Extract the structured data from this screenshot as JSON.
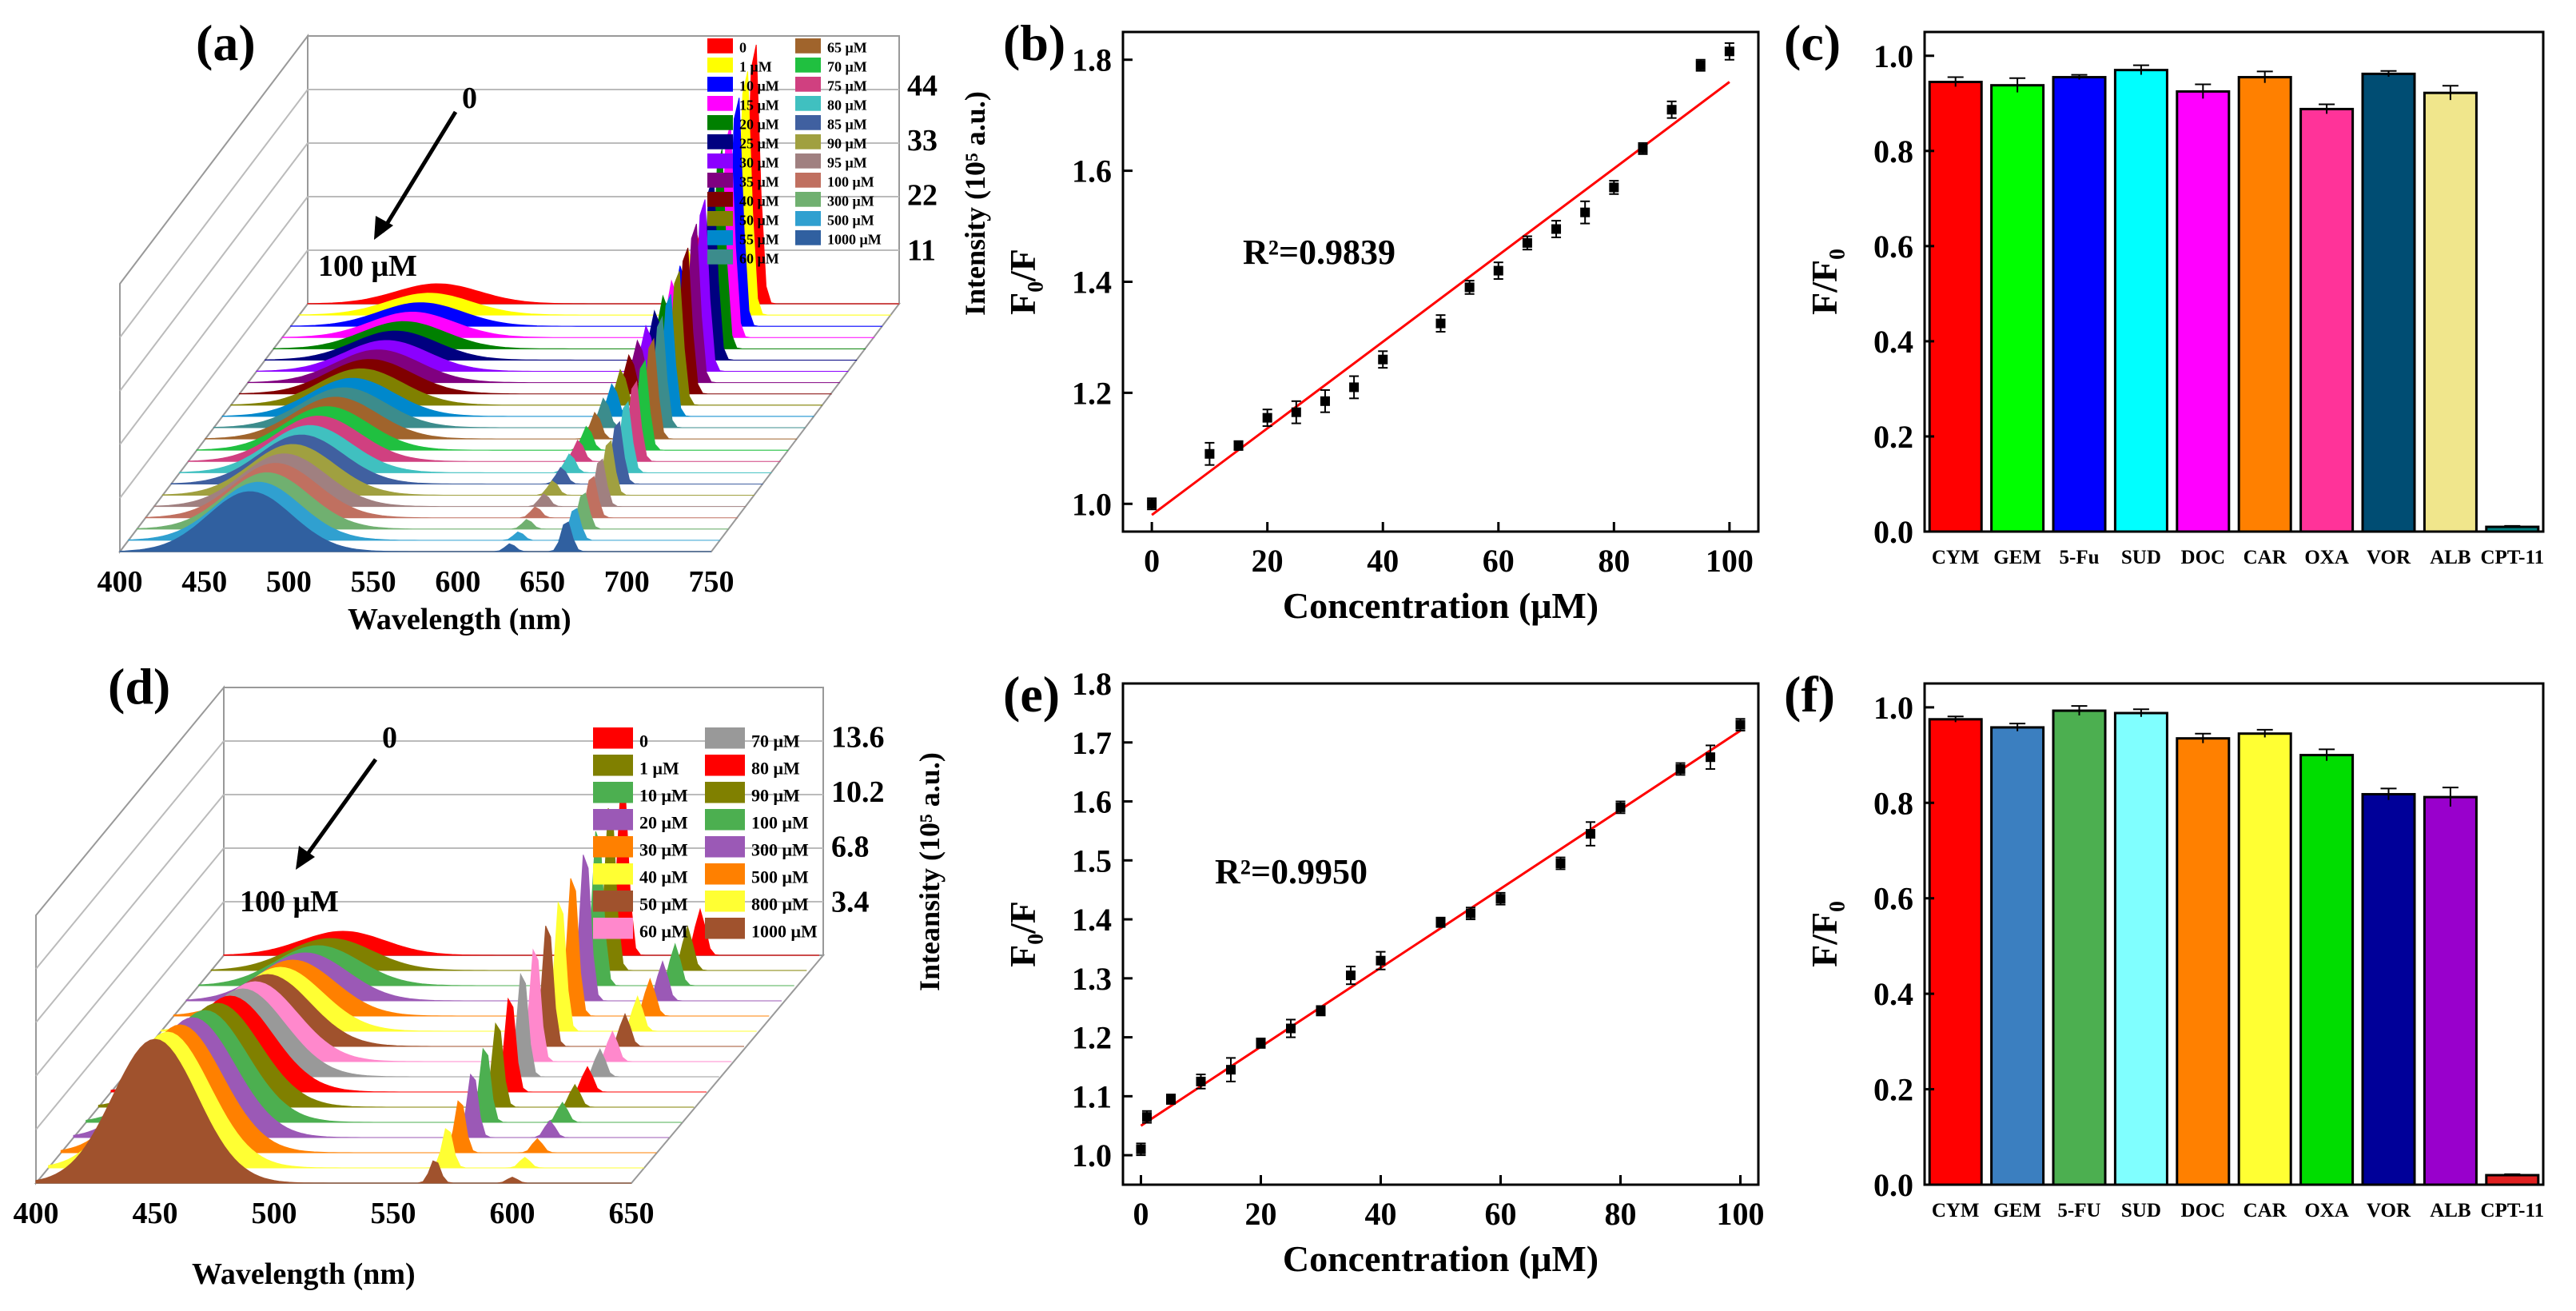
{
  "panels": {
    "a": {
      "label": "(a)",
      "arrow_start": "0",
      "arrow_end": "100 μM",
      "xlabel": "Wavelength (nm)",
      "x_ticks": [
        "400",
        "450",
        "500",
        "550",
        "600",
        "650",
        "700",
        "750"
      ],
      "z_label": "Intensity (10⁵ a.u.)",
      "z_ticks": [
        "11",
        "22",
        "33",
        "44"
      ],
      "legend": [
        {
          "label": "0",
          "color": "#ff0000"
        },
        {
          "label": "1 μM",
          "color": "#ffff00"
        },
        {
          "label": "10 μM",
          "color": "#0000ff"
        },
        {
          "label": "15 μM",
          "color": "#ff00ff"
        },
        {
          "label": "20 μM",
          "color": "#008000"
        },
        {
          "label": "25 μM",
          "color": "#000080"
        },
        {
          "label": "30 μM",
          "color": "#8b00ff"
        },
        {
          "label": "35 μM",
          "color": "#800080"
        },
        {
          "label": "40 μM",
          "color": "#800000"
        },
        {
          "label": "50 μM",
          "color": "#808000"
        },
        {
          "label": "55 μM",
          "color": "#0088cc"
        },
        {
          "label": "60 μM",
          "color": "#3c8c8c"
        },
        {
          "label": "65 μM",
          "color": "#a0642c"
        },
        {
          "label": "70 μM",
          "color": "#20c040"
        },
        {
          "label": "75 μM",
          "color": "#d04080"
        },
        {
          "label": "80 μM",
          "color": "#40c0c0"
        },
        {
          "label": "85 μM",
          "color": "#4060a0"
        },
        {
          "label": "90 μM",
          "color": "#a0a040"
        },
        {
          "label": "95 μM",
          "color": "#a08080"
        },
        {
          "label": "100 μM",
          "color": "#c07060"
        },
        {
          "label": "300 μM",
          "color": "#70b070"
        },
        {
          "label": "500 μM",
          "color": "#30a0d0"
        },
        {
          "label": "1000 μM",
          "color": "#3060a0"
        }
      ]
    },
    "b": {
      "label": "(b)",
      "annotation": "R²=0.9839"
    },
    "c": {
      "label": "(c)"
    },
    "d": {
      "label": "(d)",
      "arrow_start": "0",
      "arrow_end": "100 μM",
      "xlabel": "Wavelength (nm)",
      "x_ticks": [
        "400",
        "450",
        "500",
        "550",
        "600",
        "650"
      ],
      "z_label": "Inteansity (10⁵ a.u.)",
      "z_ticks": [
        "3.4",
        "6.8",
        "10.2",
        "13.6"
      ],
      "legend": [
        {
          "label": "0",
          "color": "#ff0000"
        },
        {
          "label": "1 μM",
          "color": "#808000"
        },
        {
          "label": "10 μM",
          "color": "#4caf50"
        },
        {
          "label": "20 μM",
          "color": "#9b59b6"
        },
        {
          "label": "30 μM",
          "color": "#ff8000"
        },
        {
          "label": "40 μM",
          "color": "#ffff33"
        },
        {
          "label": "50 μM",
          "color": "#a0522d"
        },
        {
          "label": "60 μM",
          "color": "#ff88cc"
        },
        {
          "label": "70 μM",
          "color": "#999999"
        },
        {
          "label": "80 μM",
          "color": "#ff0000"
        },
        {
          "label": "90 μM",
          "color": "#808000"
        },
        {
          "label": "100 μM",
          "color": "#4caf50"
        },
        {
          "label": "300 μM",
          "color": "#9b59b6"
        },
        {
          "label": "500 μM",
          "color": "#ff8000"
        },
        {
          "label": "800 μM",
          "color": "#ffff33"
        },
        {
          "label": "1000 μM",
          "color": "#a0522d"
        }
      ]
    },
    "e": {
      "label": "(e)",
      "annotation": "R²=0.9950"
    },
    "f": {
      "label": "(f)"
    }
  },
  "chart_data": [
    {
      "id": "b",
      "type": "scatter",
      "xlabel": "Concentration (μM)",
      "ylabel": "F₀/F",
      "xlim": [
        -5,
        105
      ],
      "ylim": [
        0.95,
        1.85
      ],
      "x_ticks": [
        0,
        20,
        40,
        60,
        80,
        100
      ],
      "y_ticks": [
        1.0,
        1.2,
        1.4,
        1.6,
        1.8
      ],
      "x": [
        0,
        10,
        15,
        20,
        25,
        30,
        35,
        40,
        50,
        55,
        60,
        65,
        70,
        75,
        80,
        85,
        90,
        95,
        100
      ],
      "y": [
        1.0,
        1.09,
        1.105,
        1.155,
        1.165,
        1.185,
        1.21,
        1.26,
        1.325,
        1.39,
        1.42,
        1.47,
        1.495,
        1.525,
        1.57,
        1.64,
        1.71,
        1.79,
        1.815
      ],
      "err": [
        0.01,
        0.02,
        0.008,
        0.015,
        0.02,
        0.02,
        0.02,
        0.015,
        0.015,
        0.012,
        0.015,
        0.012,
        0.015,
        0.02,
        0.012,
        0.01,
        0.015,
        0.01,
        0.015
      ],
      "fit": {
        "x": [
          0,
          100
        ],
        "y": [
          0.98,
          1.76
        ]
      }
    },
    {
      "id": "c",
      "type": "bar",
      "ylabel": "F/F₀",
      "ylim": [
        0.0,
        1.05
      ],
      "y_ticks": [
        0.0,
        0.2,
        0.4,
        0.6,
        0.8,
        1.0
      ],
      "categories": [
        "CYM",
        "GEM",
        "5-Fu",
        "SUD",
        "DOC",
        "CAR",
        "OXA",
        "VOR",
        "ALB",
        "CPT-11"
      ],
      "values": [
        0.945,
        0.938,
        0.955,
        0.97,
        0.925,
        0.955,
        0.888,
        0.962,
        0.922,
        0.01
      ],
      "err": [
        0.01,
        0.015,
        0.005,
        0.01,
        0.015,
        0.012,
        0.01,
        0.006,
        0.015,
        0.002
      ],
      "colors": [
        "#ff0000",
        "#00ff00",
        "#0000ff",
        "#00ffff",
        "#ff00ff",
        "#ff8000",
        "#ff3399",
        "#004d73",
        "#f0e68c",
        "#008080"
      ]
    },
    {
      "id": "e",
      "type": "scatter",
      "xlabel": "Concentration (μM)",
      "ylabel": "F₀/F",
      "xlim": [
        -3,
        103
      ],
      "ylim": [
        0.95,
        1.8
      ],
      "x_ticks": [
        0,
        20,
        40,
        60,
        80,
        100
      ],
      "y_ticks": [
        1.0,
        1.1,
        1.2,
        1.3,
        1.4,
        1.5,
        1.6,
        1.7,
        1.8
      ],
      "x": [
        0,
        1,
        5,
        10,
        15,
        20,
        25,
        30,
        35,
        40,
        50,
        55,
        60,
        70,
        75,
        80,
        90,
        95,
        100
      ],
      "y": [
        1.01,
        1.065,
        1.095,
        1.125,
        1.145,
        1.19,
        1.215,
        1.245,
        1.305,
        1.33,
        1.395,
        1.41,
        1.435,
        1.495,
        1.545,
        1.59,
        1.655,
        1.675,
        1.73
      ],
      "err": [
        0.01,
        0.01,
        0.008,
        0.012,
        0.02,
        0.008,
        0.015,
        0.008,
        0.015,
        0.015,
        0.008,
        0.01,
        0.01,
        0.01,
        0.02,
        0.01,
        0.01,
        0.02,
        0.01
      ],
      "fit": {
        "x": [
          0,
          100
        ],
        "y": [
          1.05,
          1.72
        ]
      }
    },
    {
      "id": "f",
      "type": "bar",
      "ylabel": "F/F₀",
      "ylim": [
        0.0,
        1.05
      ],
      "y_ticks": [
        0.0,
        0.2,
        0.4,
        0.6,
        0.8,
        1.0
      ],
      "categories": [
        "CYM",
        "GEM",
        "5-FU",
        "SUD",
        "DOC",
        "CAR",
        "OXA",
        "VOR",
        "ALB",
        "CPT-11"
      ],
      "values": [
        0.975,
        0.958,
        0.993,
        0.988,
        0.935,
        0.945,
        0.9,
        0.818,
        0.812,
        0.02
      ],
      "err": [
        0.006,
        0.008,
        0.01,
        0.008,
        0.01,
        0.008,
        0.012,
        0.012,
        0.02,
        0.002
      ],
      "colors": [
        "#ff0000",
        "#3b7fc0",
        "#4caf50",
        "#80ffff",
        "#ff8000",
        "#ffff33",
        "#00dd00",
        "#000099",
        "#9900cc",
        "#e02020"
      ]
    }
  ]
}
